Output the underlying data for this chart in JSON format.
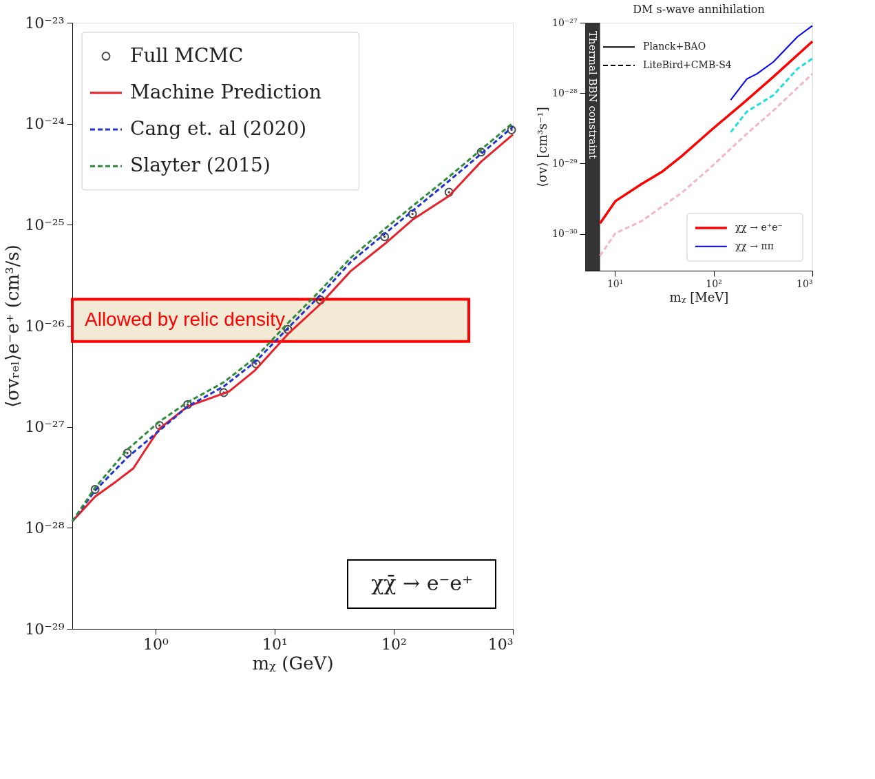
{
  "chart_data": [
    {
      "type": "line",
      "xlabel": "mᵪ (GeV)",
      "ylabel": "⟨σvᵣₑₗ⟩e⁻e⁺ (cm³/s)",
      "xlim": [
        0.2,
        1000
      ],
      "ylim": [
        1e-29,
        1e-23
      ],
      "log": "xy",
      "xticks": [
        {
          "value": 1,
          "label": "10⁰"
        },
        {
          "value": 10,
          "label": "10¹"
        },
        {
          "value": 100,
          "label": "10²"
        },
        {
          "value": 1000,
          "label": "10³"
        }
      ],
      "yticks": [
        {
          "value": 1e-29,
          "label": "10⁻²⁹"
        },
        {
          "value": 1e-28,
          "label": "10⁻²⁸"
        },
        {
          "value": 1e-27,
          "label": "10⁻²⁷"
        },
        {
          "value": 1e-26,
          "label": "10⁻²⁶"
        },
        {
          "value": 1e-25,
          "label": "10⁻²⁵"
        },
        {
          "value": 1e-24,
          "label": "10⁻²⁴"
        },
        {
          "value": 1e-23,
          "label": "10⁻²³"
        }
      ],
      "legend": "top left",
      "grid": false,
      "bands": [
        {
          "axis": "y",
          "from": 7e-27,
          "to": 1.83e-26,
          "label": "Allowed by relic density",
          "color": "#f3ead5"
        }
      ],
      "annotations": [
        "χχ̄ → e⁻e⁺"
      ],
      "series": [
        {
          "name": "Full MCMC",
          "type": "scatter",
          "marker": "circle",
          "color": "#000000",
          "x": [
            0.311,
            0.58,
            1.08,
            1.86,
            3.74,
            6.97,
            12.9,
            24.2,
            83.8,
            143.6,
            291,
            542,
            975
          ],
          "values": [
            2.4e-28,
            5.5e-28,
            1.03e-27,
            1.66e-27,
            2.18e-27,
            4.2e-27,
            9.2e-27,
            1.8e-26,
            7.6e-26,
            1.28e-25,
            2.1e-25,
            5.25e-25,
            8.7e-25
          ]
        },
        {
          "name": "Machine Prediction",
          "type": "line",
          "line_style": "solid",
          "color": "#e8202a",
          "x": [
            0.2,
            0.311,
            0.466,
            0.651,
            0.804,
            1.08,
            1.86,
            3.22,
            4.14,
            6.85,
            12.9,
            24.2,
            43.5,
            83.8,
            143.6,
            291,
            542,
            1000
          ],
          "values": [
            1.16e-28,
            2.04e-28,
            2.87e-28,
            3.88e-28,
            5.7e-28,
            9.6e-28,
            1.59e-27,
            2.01e-27,
            2.24e-27,
            3.63e-27,
            8.26e-27,
            1.64e-26,
            3.48e-26,
            6.45e-26,
            1.12e-25,
            1.93e-25,
            4.22e-25,
            7.82e-25
          ]
        },
        {
          "name": "Cang et. al (2020)",
          "type": "line",
          "line_style": "dashed",
          "color": "#2233cc",
          "x": [
            0.2,
            0.311,
            0.58,
            1.08,
            1.86,
            3.74,
            6.97,
            12.9,
            24.2,
            43.5,
            83.8,
            143.6,
            291,
            542,
            1000
          ],
          "values": [
            1.16e-28,
            2.34e-28,
            4.97e-28,
            9.2e-28,
            1.59e-27,
            2.51e-27,
            4.46e-27,
            9.46e-27,
            2.01e-26,
            4.28e-26,
            8.14e-26,
            1.37e-25,
            2.72e-25,
            5.04e-25,
            9.33e-25
          ]
        },
        {
          "name": "Slayter (2015)",
          "type": "line",
          "line_style": "dashed",
          "color": "#2e8b3a",
          "x": [
            0.2,
            0.311,
            0.58,
            1.08,
            1.86,
            3.74,
            6.97,
            12.9,
            24.2,
            43.5,
            83.8,
            143.6,
            291,
            542,
            1000
          ],
          "values": [
            1.16e-28,
            2.5e-28,
            5.94e-28,
            1.13e-27,
            1.75e-27,
            2.76e-27,
            4.9e-27,
            1.06e-26,
            2.24e-26,
            4.71e-26,
            9.08e-26,
            1.53e-25,
            2.99e-25,
            5.55e-25,
            1.02e-24
          ]
        }
      ]
    },
    {
      "type": "line",
      "title": "DM s-wave annihilation",
      "xlabel": "mᵪ [MeV]",
      "ylabel": "⟨σv⟩ [cm³s⁻¹]",
      "xlim": [
        5,
        1000
      ],
      "ylim": [
        3e-31,
        1e-27
      ],
      "log": "xy",
      "xticks": [
        {
          "value": 10,
          "label": "10¹"
        },
        {
          "value": 100,
          "label": "10²"
        },
        {
          "value": 1000,
          "label": "10³"
        }
      ],
      "yticks": [
        {
          "value": 1e-30,
          "label": "10⁻³⁰"
        },
        {
          "value": 1e-29,
          "label": "10⁻²⁹"
        },
        {
          "value": 1e-28,
          "label": "10⁻²⁸"
        },
        {
          "value": 1e-27,
          "label": "10⁻²⁷"
        }
      ],
      "legend": "bottom right",
      "grid": false,
      "annotations": [
        "Planck+BAO",
        "LiteBird+CMB-S4"
      ],
      "bands": [
        {
          "axis": "x",
          "from": 5,
          "to": 7.08,
          "label": "Thermal BBN constraint",
          "color": "#333333"
        }
      ],
      "series": [
        {
          "name": "χχ → e⁺e⁻",
          "type": "line",
          "line_style": "solid",
          "color": "#ff0000",
          "x": [
            7.08,
            10.1,
            18.7,
            29.9,
            48,
            97.5,
            198,
            402,
            1000
          ],
          "values": [
            1.41e-30,
            2.91e-30,
            5.14e-30,
            7.59e-30,
            1.29e-29,
            3.09e-29,
            7.13e-29,
            1.7e-28,
            5.41e-28
          ]
        },
        {
          "type": "line",
          "line_style": "dashed",
          "color": "#f4b6c2",
          "x": [
            7.08,
            10.1,
            18.7,
            29.9,
            48,
            97.5,
            198,
            402,
            1000
          ],
          "values": [
            4.89e-31,
            1.02e-30,
            1.52e-30,
            2.43e-30,
            3.88e-30,
            9.27e-30,
            2.36e-29,
            5.64e-29,
            1.88e-28
          ]
        },
        {
          "name": "χχ → ππ",
          "type": "line",
          "line_style": "solid",
          "color": "#0000ff",
          "x": [
            149,
            217,
            275,
            402,
            708,
            1000
          ],
          "values": [
            7.98e-29,
            1.59e-28,
            1.88e-28,
            2.77e-28,
            6.34e-28,
            9.05e-28
          ]
        },
        {
          "type": "line",
          "line_style": "dashed",
          "color": "#22dddd",
          "x": [
            149,
            217,
            402,
            708,
            1000
          ],
          "values": [
            2.79e-29,
            5.45e-29,
            9.31e-29,
            2.22e-28,
            3.1e-28
          ]
        }
      ]
    }
  ]
}
